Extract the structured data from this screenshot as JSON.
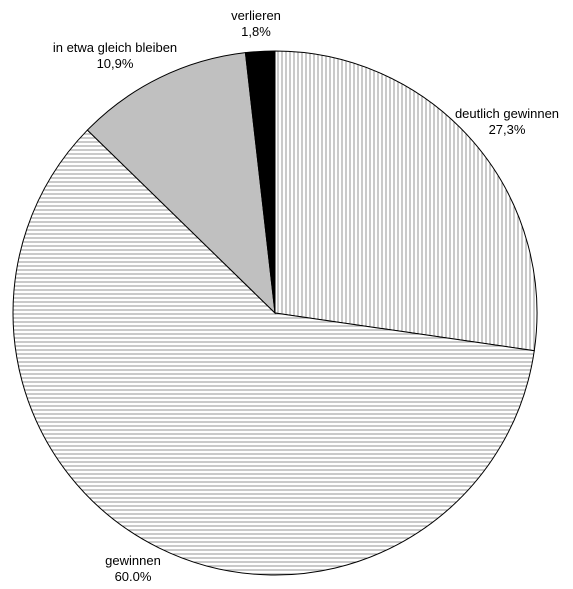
{
  "chart_data": {
    "type": "pie",
    "title": "",
    "start_angle": "12 o'clock, clockwise",
    "slices": [
      {
        "label": "deutlich gewinnen",
        "value_text": "27,3%",
        "value": 27.3,
        "fill": "vertical-stripes"
      },
      {
        "label": "gewinnen",
        "value_text": "60.0%",
        "value": 60.0,
        "fill": "horizontal-stripes"
      },
      {
        "label": "in etwa gleich bleiben",
        "value_text": "10,9%",
        "value": 10.9,
        "fill": "#c0c0c0"
      },
      {
        "label": "verlieren",
        "value_text": "1,8%",
        "value": 1.8,
        "fill": "#000000"
      }
    ]
  }
}
